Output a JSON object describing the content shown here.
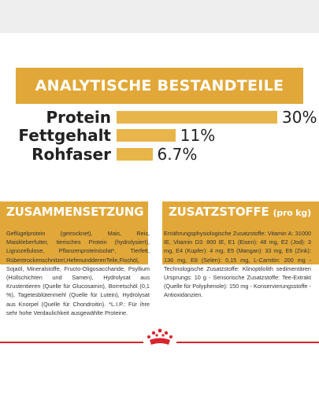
{
  "header": {
    "title": "ANALYTISCHE BESTANDTEILE"
  },
  "nutrients": [
    {
      "name": "Protein",
      "value_label": "30%",
      "percent": 30
    },
    {
      "name": "Fettgehalt",
      "value_label": "11%",
      "percent": 11
    },
    {
      "name": "Rohfaser",
      "value_label": "6.7%",
      "percent": 6.7
    }
  ],
  "composition": {
    "title": "ZUSAMMENSETZUNG",
    "text": "Geflügelprotein (getrocknet), Mais, Reis, Maiskleberfutter, tierisches Protein (hydrolysiert), Lignozellulose, Pflanzenproteinisolat*, Tierfett, RübentrockenschnitzeI,HefenundderenTeile,Fischöl, Sojaöl, Mineralstoffe, Fructo-Oligosaccharide, Psyllium (Hüllschichten und Samen), Hydrolysat aus Krustentieren (Quelle für Glucosamin), Borretschöl (0,1 %), Tagetesblütenmehl (Quelle für Lutein), Hydrolysat aus Knorpel (Quelle für Chondroitin). *L.I.P.: Für ihre sehr hohe Verdaulichkeit ausgewählte Proteine."
  },
  "additives": {
    "title": "ZUSATZSTOFFE",
    "title_suffix": "(pro kg)",
    "text": "Ernährungsphysiologische Zusatzstoffe: Vitamin A: 31000 IE, Vitamin D3: 800 IE, E1 (Eisen): 48 mg, E2 (Jod): 3 mg, E4 (Kupfer): 4 mg, E5 (Mangan): 33 mg, E6 (Zink): 136 mg, E8 (Selen): 0,15 mg, L-Carnitin: 200 mg - Technologische Zusatzstoffe: Klinoptilolith sedimentären Ursprungs: 10 g - Sensorische Zusatzstoffe: Tee-Extrakt (Quelle für Polyphenole): 150 mg - Konservierungsstoffe - Antioxidanzien."
  },
  "colors": {
    "accent": "#e1a839",
    "bar": "#e8b54a",
    "line": "#d9232d"
  },
  "icons": {
    "logo": "royal-canin-crown-logo"
  }
}
